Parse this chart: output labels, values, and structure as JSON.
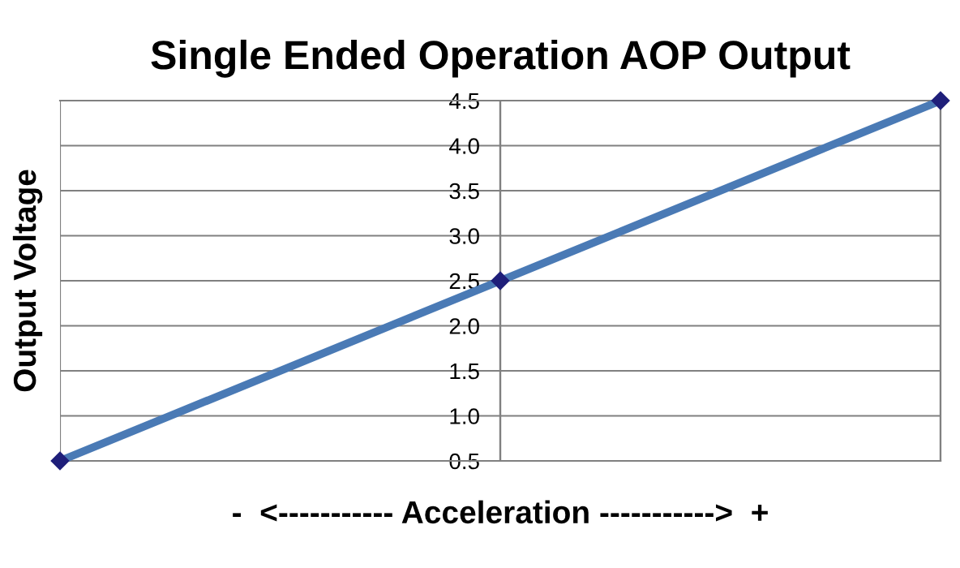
{
  "chart_data": {
    "type": "line",
    "title": "Single Ended Operation AOP Output",
    "xlabel": "-  <----------- Acceleration ----------->  +",
    "ylabel": "Output Voltage",
    "categories": [
      null,
      null,
      null
    ],
    "series": [
      {
        "color": "#4a7ab5",
        "values": [
          0.5,
          2.5,
          4.5
        ]
      }
    ],
    "ylim": [
      0.5,
      4.5
    ],
    "yticks": [
      0.5,
      {
        "value": 1,
        "label": "1.0"
      },
      1.5,
      {
        "value": 2,
        "label": "2.0"
      },
      2.5,
      {
        "value": 3,
        "label": "3.0"
      },
      3.5,
      {
        "value": 4,
        "label": "4.0"
      },
      4.5
    ],
    "grid": true,
    "marker": "diamond",
    "line_style": "solid"
  }
}
